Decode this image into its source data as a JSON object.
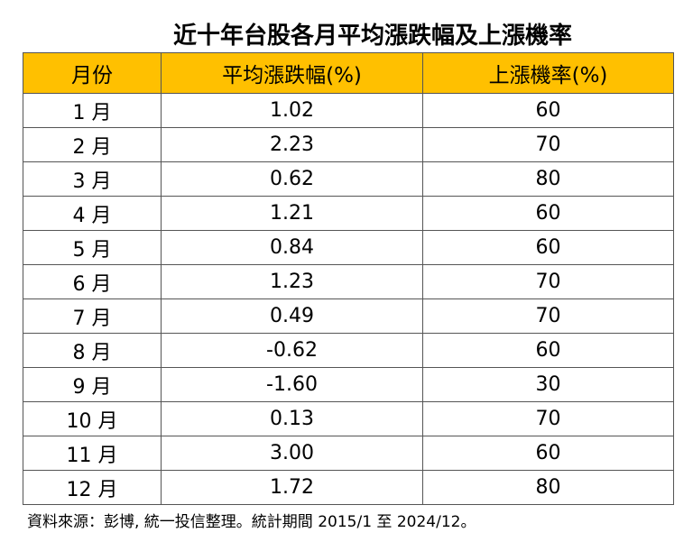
{
  "title": "近十年台股各月平均漲跌幅及上漲機率",
  "table": {
    "header": [
      "月份",
      "平均漲跌幅(%)",
      "上漲機率(%)"
    ],
    "rows": [
      [
        "1 月",
        "1.02",
        "60"
      ],
      [
        "2 月",
        "2.23",
        "70"
      ],
      [
        "3 月",
        "0.62",
        "80"
      ],
      [
        "4 月",
        "1.21",
        "60"
      ],
      [
        "5 月",
        "0.84",
        "60"
      ],
      [
        "6 月",
        "1.23",
        "70"
      ],
      [
        "7 月",
        "0.49",
        "70"
      ],
      [
        "8 月",
        "-0.62",
        "60"
      ],
      [
        "9 月",
        "-1.60",
        "30"
      ],
      [
        "10 月",
        "0.13",
        "70"
      ],
      [
        "11 月",
        "3.00",
        "60"
      ],
      [
        "12 月",
        "1.72",
        "80"
      ]
    ]
  },
  "footnote": "資料來源：彭博, 統一投信整理。統計期間 2015/1 至 2024/12。"
}
